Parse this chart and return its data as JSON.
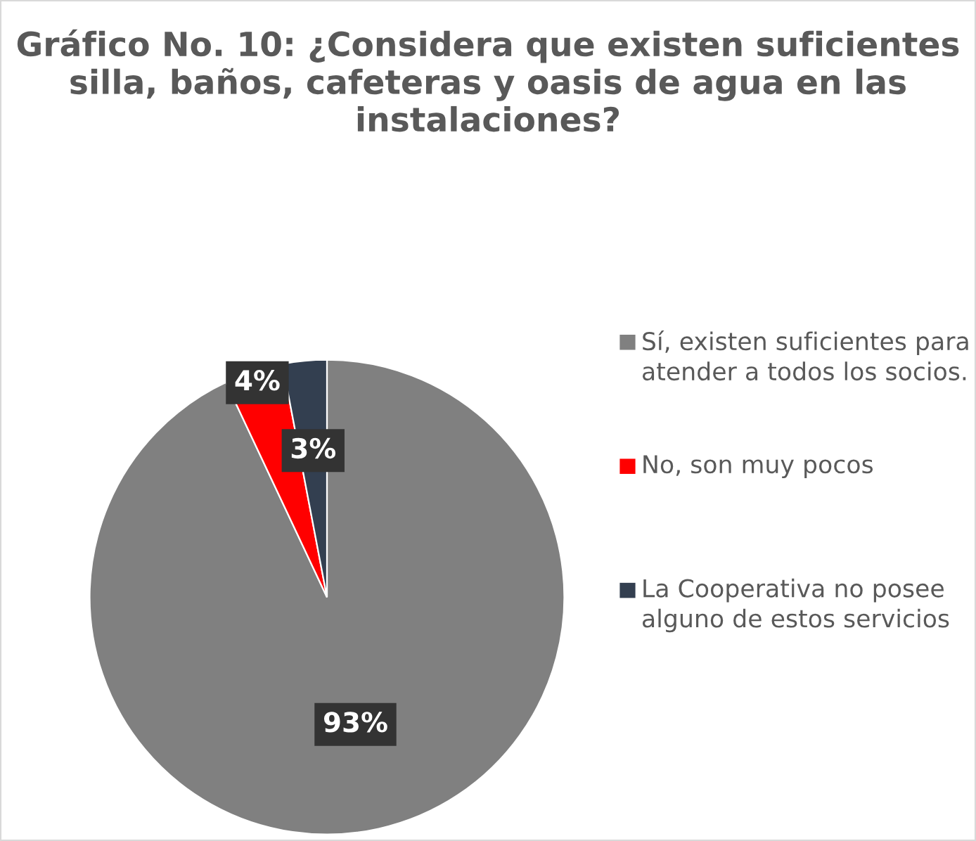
{
  "chart_data": {
    "type": "pie",
    "title": "Gráfico No. 10: ¿Considera que existen suficientes silla, baños, cafeteras y oasis de agua en las instalaciones?",
    "categories": [
      "Sí, existen suficientes para atender a todos los socios.",
      "No, son muy pocos",
      "La Cooperativa no posee alguno de estos servicios"
    ],
    "values": [
      93,
      4,
      3
    ],
    "colors": [
      "#808080",
      "#ff0000",
      "#333f50"
    ],
    "value_labels": [
      "93%",
      "4%",
      "3%"
    ],
    "legend": "right"
  }
}
